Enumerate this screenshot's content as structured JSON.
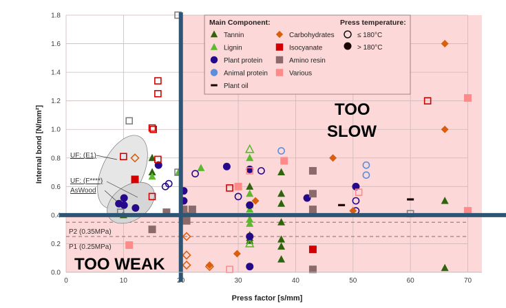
{
  "chart_data": {
    "type": "scatter",
    "xlabel": "Press factor [s/mm]",
    "ylabel": "Internal bond [N/mm²]",
    "xlim": [
      0,
      70
    ],
    "ylim": [
      0,
      1.8
    ],
    "xticks": [
      0,
      10,
      20,
      30,
      40,
      50,
      60,
      70
    ],
    "yticks": [
      "0.0",
      "0.2",
      "0.4",
      "0.6",
      "0.8",
      "1.0",
      "1.2",
      "1.4",
      "1.6",
      "1.8"
    ],
    "grid": true,
    "thresholds": {
      "x": 20,
      "y": 0.4
    },
    "reference_lines": [
      {
        "label": "P2 (0.35MPa)",
        "y": 0.35
      },
      {
        "label": "P1 (0.25MPa)",
        "y": 0.25
      }
    ],
    "region_labels": {
      "slow_1": "TOO",
      "slow_2": "SLOW",
      "weak": "TOO WEAK"
    },
    "annotations": [
      "UF: (E1)",
      "UF: (F****)",
      "AsWood"
    ],
    "legend": {
      "placement": "top-center",
      "title_component": "Main Component:",
      "title_temperature": "Press temperature:",
      "temperature": [
        "≤ 180°C",
        "> 180°C"
      ]
    },
    "colors": {
      "threshold": "#2e5573",
      "shade": "#fdd8d8"
    },
    "series": [
      {
        "name": "Tannin",
        "marker": "triangle",
        "color": "#2d640c",
        "filled": [
          [
            15,
            0.8
          ],
          [
            15,
            0.7
          ],
          [
            10,
            0.4
          ],
          [
            32,
            0.6
          ],
          [
            32,
            0.26
          ],
          [
            32,
            0.24
          ],
          [
            32,
            0.22
          ],
          [
            37.5,
            0.7
          ],
          [
            37.5,
            0.55
          ],
          [
            37.5,
            0.48
          ],
          [
            37.5,
            0.35
          ],
          [
            37.5,
            0.23
          ],
          [
            37.5,
            0.18
          ],
          [
            37.5,
            0.09
          ],
          [
            66,
            0.5
          ],
          [
            66,
            0.03
          ]
        ],
        "hollow": []
      },
      {
        "name": "Lignin",
        "marker": "triangle",
        "color": "#5cb82e",
        "filled": [
          [
            15,
            0.67
          ],
          [
            19.6,
            0.7
          ],
          [
            23.5,
            0.73
          ],
          [
            32,
            0.8
          ],
          [
            32,
            0.55
          ],
          [
            32,
            0.47
          ],
          [
            32,
            0.44
          ],
          [
            32,
            0.37
          ],
          [
            32,
            0.34
          ]
        ],
        "hollow": [
          [
            32,
            0.86
          ],
          [
            32,
            0.2
          ]
        ]
      },
      {
        "name": "Plant protein",
        "marker": "circle",
        "color": "#26098a",
        "filled": [
          [
            16.1,
            0.75
          ],
          [
            10.1,
            0.52
          ],
          [
            9.2,
            0.48
          ],
          [
            10.1,
            0.47
          ],
          [
            12.1,
            0.45
          ],
          [
            20.5,
            0.57
          ],
          [
            20.5,
            0.5
          ],
          [
            28,
            0.74
          ],
          [
            32,
            0.72
          ],
          [
            32,
            0.47
          ],
          [
            32,
            0.25
          ],
          [
            32,
            0.04
          ],
          [
            42,
            0.52
          ],
          [
            50.5,
            0.6
          ]
        ],
        "hollow": [
          [
            17.3,
            0.6
          ],
          [
            17.9,
            0.62
          ],
          [
            22.5,
            0.69
          ],
          [
            30,
            0.53
          ],
          [
            34,
            0.71
          ],
          [
            50.5,
            0.5
          ],
          [
            50.5,
            0.43
          ]
        ]
      },
      {
        "name": "Animal protein",
        "marker": "circle",
        "color": "#5b8fdc",
        "filled": [],
        "hollow": [
          [
            37.5,
            0.85
          ],
          [
            52.3,
            0.75
          ],
          [
            52.3,
            0.68
          ]
        ]
      },
      {
        "name": "Plant oil",
        "marker": "dash",
        "color": "#1a0505",
        "filled": [
          [
            48,
            0.47
          ],
          [
            60,
            0.51
          ]
        ],
        "hollow": []
      },
      {
        "name": "Carbohydrates",
        "marker": "diamond",
        "color": "#d95f0e",
        "filled": [
          [
            25,
            0.05
          ],
          [
            29.8,
            0.13
          ],
          [
            33,
            0.5
          ],
          [
            46.5,
            0.8
          ],
          [
            50,
            0.43
          ],
          [
            66,
            1.6
          ],
          [
            66,
            1.0
          ]
        ],
        "hollow": [
          [
            12,
            0.8
          ],
          [
            21,
            0.4
          ],
          [
            21,
            0.25
          ],
          [
            21,
            0.12
          ],
          [
            21,
            0.05
          ],
          [
            25,
            0.04
          ]
        ]
      },
      {
        "name": "Isocyanate",
        "marker": "square",
        "color": "#d40000",
        "filled": [
          [
            12,
            0.65
          ],
          [
            43,
            0.16
          ]
        ],
        "hollow": [
          [
            10,
            0.81
          ],
          [
            15,
            1.01
          ],
          [
            15.2,
            1.0
          ],
          [
            16,
            1.34
          ],
          [
            16,
            1.25
          ],
          [
            16,
            0.79
          ],
          [
            15,
            0.53
          ],
          [
            28.5,
            0.59
          ],
          [
            63,
            1.2
          ]
        ]
      },
      {
        "name": "Amino resin",
        "marker": "square",
        "color": "#8a6a6a",
        "filled": [
          [
            15,
            0.3
          ],
          [
            17.5,
            0.42
          ],
          [
            20.5,
            0.44
          ],
          [
            22,
            0.44
          ],
          [
            21,
            0.36
          ],
          [
            43,
            0.71
          ],
          [
            43,
            0.55
          ],
          [
            43,
            0.44
          ],
          [
            43,
            0.02
          ]
        ],
        "hollow": []
      },
      {
        "name": "Various",
        "marker": "square",
        "color": "#ff8a8a",
        "filled": [
          [
            11,
            0.19
          ],
          [
            30,
            0.6
          ],
          [
            38,
            0.78
          ],
          [
            70,
            1.22
          ],
          [
            70,
            0.43
          ]
        ],
        "hollow": [
          [
            32,
            0.71
          ],
          [
            28.5,
            0.02
          ],
          [
            51,
            0.56
          ]
        ]
      },
      {
        "name": "Unspecified (grey)",
        "marker": "square",
        "color": "#808080",
        "legend": false,
        "filled": [],
        "hollow": [
          [
            19.5,
            1.8
          ],
          [
            11,
            1.06
          ],
          [
            19.5,
            0.7
          ],
          [
            9.5,
            0.42
          ],
          [
            60,
            0.41
          ]
        ]
      }
    ]
  }
}
